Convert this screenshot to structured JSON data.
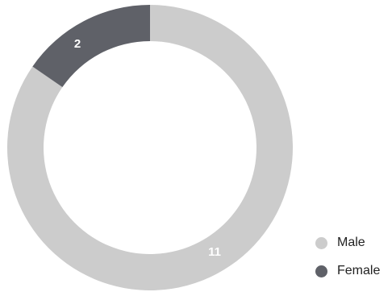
{
  "chart_data": {
    "type": "pie",
    "variant": "donut",
    "title": "",
    "categories": [
      "Male",
      "Female"
    ],
    "values": [
      11,
      2
    ],
    "colors": [
      "#cccccc",
      "#5f6168"
    ],
    "label_color": "#ffffff",
    "legend_position": "bottom-right",
    "start_angle": "12 o'clock",
    "direction": "clockwise"
  }
}
